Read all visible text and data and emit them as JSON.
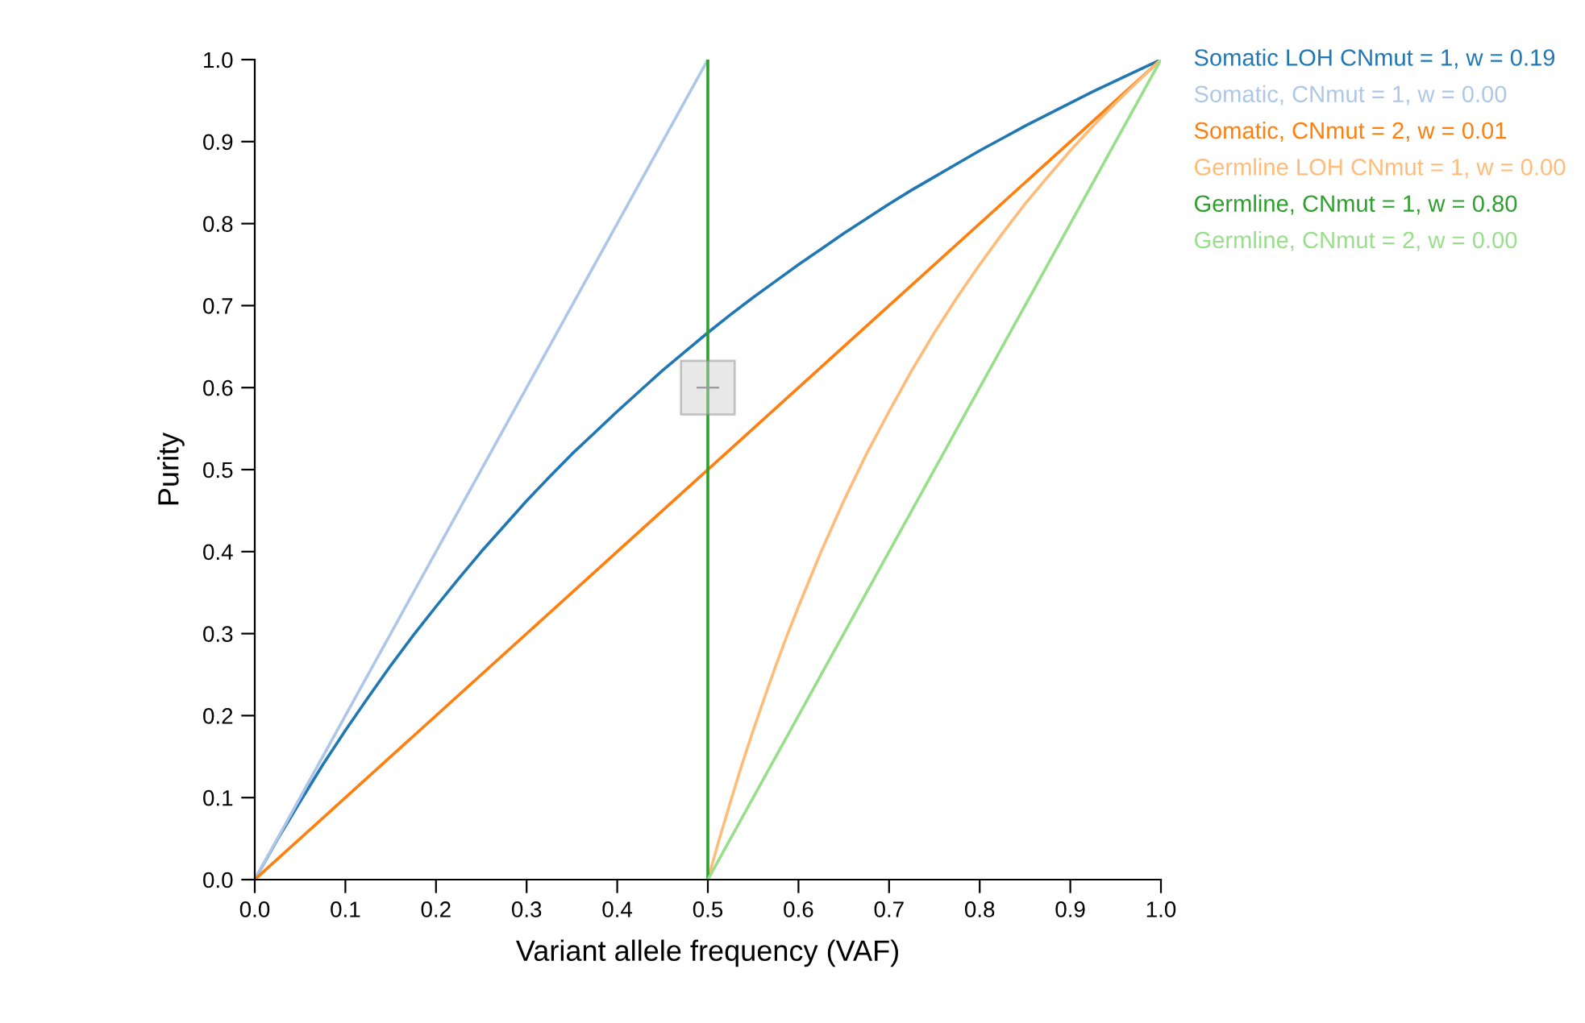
{
  "chart_data": {
    "type": "line",
    "xlabel": "Variant allele frequency (VAF)",
    "ylabel": "Purity",
    "xlim": [
      0,
      1
    ],
    "ylim": [
      0,
      1
    ],
    "xticks": [
      {
        "value": 0,
        "label": "0.0"
      },
      0.1,
      0.2,
      0.3,
      0.4,
      0.5,
      0.6,
      0.7,
      0.8,
      0.9,
      {
        "value": 1,
        "label": "1.0"
      }
    ],
    "yticks": [
      {
        "value": 0,
        "label": "0.0"
      },
      0.1,
      0.2,
      0.3,
      0.4,
      0.5,
      0.6,
      0.7,
      0.8,
      0.9,
      {
        "value": 1,
        "label": "1.0"
      }
    ],
    "grid": false,
    "legend": "top right",
    "marker": "none",
    "line_style": "solid",
    "series": [
      {
        "name": "Somatic LOH CNmut = 1, w = 0.19",
        "color": "#1f77b4",
        "x": [
          0,
          0.025,
          0.05,
          0.075,
          0.1,
          0.125,
          0.15,
          0.175,
          0.2,
          0.225,
          0.25,
          0.275,
          0.3,
          0.325,
          0.35,
          0.375,
          0.4,
          0.425,
          0.45,
          0.475,
          0.5,
          0.525,
          0.55,
          0.575,
          0.6,
          0.625,
          0.65,
          0.675,
          0.7,
          0.725,
          0.75,
          0.775,
          0.8,
          0.825,
          0.85,
          0.875,
          0.9,
          0.925,
          0.95,
          0.975,
          1
        ],
        "values": [
          0,
          0.049,
          0.095,
          0.14,
          0.182,
          0.222,
          0.261,
          0.298,
          0.333,
          0.367,
          0.4,
          0.431,
          0.462,
          0.491,
          0.519,
          0.545,
          0.571,
          0.596,
          0.621,
          0.644,
          0.667,
          0.689,
          0.71,
          0.73,
          0.75,
          0.769,
          0.788,
          0.806,
          0.824,
          0.841,
          0.857,
          0.873,
          0.889,
          0.904,
          0.919,
          0.933,
          0.947,
          0.961,
          0.974,
          0.987,
          1
        ]
      },
      {
        "name": "Somatic, CNmut = 1, w = 0.00",
        "color": "#aec7e8",
        "x": [
          0,
          0.5
        ],
        "values": [
          0,
          1
        ]
      },
      {
        "name": "Somatic, CNmut = 2, w = 0.01",
        "color": "#ff7f0e",
        "x": [
          0,
          1
        ],
        "values": [
          0,
          1
        ]
      },
      {
        "name": "Germline LOH CNmut = 1, w = 0.00",
        "color": "#ffbb78",
        "x": [
          0.5,
          0.5125,
          0.525,
          0.5375,
          0.55,
          0.5625,
          0.575,
          0.5875,
          0.6,
          0.625,
          0.65,
          0.675,
          0.7,
          0.725,
          0.75,
          0.775,
          0.8,
          0.825,
          0.85,
          0.875,
          0.9,
          0.925,
          0.95,
          0.975,
          1
        ],
        "values": [
          0,
          0.049,
          0.095,
          0.14,
          0.182,
          0.222,
          0.261,
          0.298,
          0.333,
          0.4,
          0.462,
          0.519,
          0.571,
          0.621,
          0.667,
          0.71,
          0.75,
          0.788,
          0.824,
          0.857,
          0.889,
          0.919,
          0.947,
          0.974,
          1
        ]
      },
      {
        "name": "Germline, CNmut = 1, w = 0.80",
        "color": "#2ca02c",
        "x": [
          0.5,
          0.5
        ],
        "values": [
          0,
          1
        ]
      },
      {
        "name": "Germline, CNmut = 2, w = 0.00",
        "color": "#98df8a",
        "x": [
          0.5,
          1
        ],
        "values": [
          0,
          1
        ]
      },
      {
        "type": "scatter",
        "color": "#cccccc",
        "marker": "square",
        "x": [
          0.5
        ],
        "values": [
          0.6
        ],
        "xerrors": [
          0.0125
        ]
      }
    ]
  }
}
